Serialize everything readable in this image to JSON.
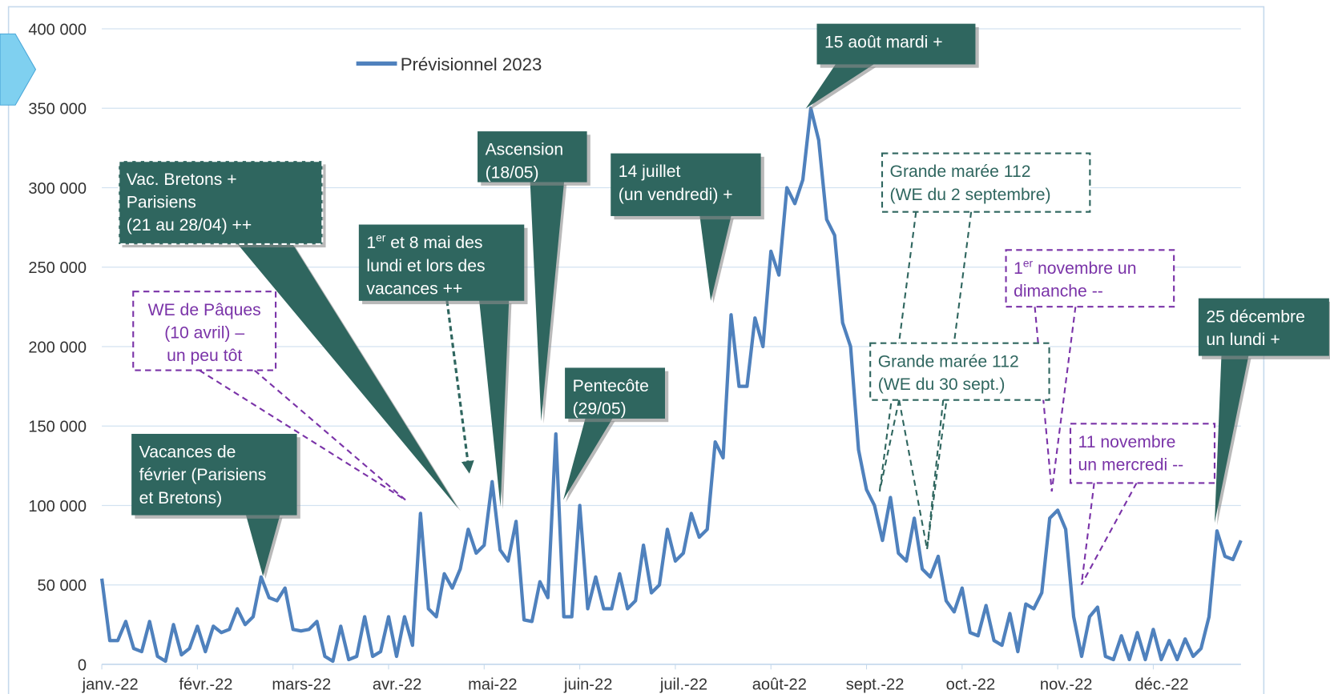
{
  "chart_data": {
    "type": "line",
    "legend": "top-left",
    "grid": true,
    "ylim": [
      0,
      400000
    ],
    "yticks": [
      0,
      {
        "value": 50000,
        "label": "50 000"
      },
      {
        "value": 100000,
        "label": "100 000"
      },
      {
        "value": 150000,
        "label": "150 000"
      },
      {
        "value": 200000,
        "label": "200 000"
      },
      {
        "value": 250000,
        "label": "250 000"
      },
      {
        "value": 300000,
        "label": "300 000"
      },
      {
        "value": 350000,
        "label": "350 000"
      },
      {
        "value": 400000,
        "label": "400 000"
      }
    ],
    "categories": [
      "janv.-22",
      null,
      null,
      null,
      null,
      null,
      null,
      null,
      null,
      null,
      null,
      null,
      "févr.-22",
      null,
      null,
      null,
      null,
      null,
      null,
      null,
      null,
      null,
      null,
      null,
      "mars-22",
      null,
      null,
      null,
      null,
      null,
      null,
      null,
      null,
      null,
      null,
      null,
      "avr.-22",
      null,
      null,
      null,
      null,
      null,
      null,
      null,
      null,
      null,
      null,
      null,
      "mai-22",
      null,
      null,
      null,
      null,
      null,
      null,
      null,
      null,
      null,
      null,
      null,
      "juin-22",
      null,
      null,
      null,
      null,
      null,
      null,
      null,
      null,
      null,
      null,
      null,
      "juil.-22",
      null,
      null,
      null,
      null,
      null,
      null,
      null,
      null,
      null,
      null,
      null,
      "août-22",
      null,
      null,
      null,
      null,
      null,
      null,
      null,
      null,
      null,
      null,
      null,
      "sept.-22",
      null,
      null,
      null,
      null,
      null,
      null,
      null,
      null,
      null,
      null,
      null,
      "oct.-22",
      null,
      null,
      null,
      null,
      null,
      null,
      null,
      null,
      null,
      null,
      null,
      "nov.-22",
      null,
      null,
      null,
      null,
      null,
      null,
      null,
      null,
      null,
      null,
      null,
      "déc.-22",
      null,
      null,
      null,
      null,
      null,
      null,
      null,
      null,
      null,
      null,
      null
    ],
    "series": [
      {
        "name": "Prévisionnel 2023",
        "color": "#4f81bd",
        "values": [
          54000,
          15000,
          15000,
          27000,
          10000,
          8000,
          27000,
          5000,
          2000,
          25000,
          6000,
          10000,
          24000,
          8000,
          24000,
          20000,
          22000,
          35000,
          25000,
          30000,
          55000,
          42000,
          40000,
          48000,
          22000,
          21000,
          22000,
          27000,
          5000,
          2000,
          24000,
          3000,
          5000,
          30000,
          5000,
          8000,
          30000,
          5000,
          30000,
          12000,
          95000,
          35000,
          30000,
          57000,
          48000,
          60000,
          85000,
          70000,
          75000,
          115000,
          72000,
          65000,
          90000,
          28000,
          27000,
          52000,
          42000,
          145000,
          30000,
          30000,
          100000,
          35000,
          55000,
          35000,
          35000,
          57000,
          35000,
          40000,
          75000,
          45000,
          50000,
          85000,
          65000,
          70000,
          95000,
          80000,
          85000,
          140000,
          130000,
          220000,
          175000,
          175000,
          218000,
          200000,
          260000,
          245000,
          300000,
          290000,
          305000,
          350000,
          330000,
          280000,
          270000,
          215000,
          200000,
          135000,
          110000,
          100000,
          78000,
          105000,
          70000,
          65000,
          92000,
          60000,
          55000,
          68000,
          40000,
          33000,
          48000,
          20000,
          18000,
          37000,
          15000,
          12000,
          32000,
          8000,
          38000,
          35000,
          45000,
          92000,
          97000,
          85000,
          30000,
          5000,
          30000,
          36000,
          5000,
          3000,
          18000,
          3000,
          20000,
          3000,
          22000,
          3000,
          15000,
          3000,
          16000,
          5000,
          10000,
          30000,
          84000,
          68000,
          66000,
          78000
        ]
      }
    ],
    "annotations": [
      {
        "style": "dark-dashed",
        "lines": [
          "Vac. Bretons +",
          "Parisiens",
          " (21 au 28/04) ++"
        ]
      },
      {
        "style": "purple-dashed",
        "lines": [
          "WE de Pâques",
          "(10 avril) –",
          "un peu tôt"
        ]
      },
      {
        "style": "dark",
        "lines": [
          "Vacances de",
          "février (Parisiens",
          "et Bretons)"
        ]
      },
      {
        "style": "dark",
        "lines": [
          [
            "1",
            "er",
            " et 8 mai des"
          ],
          "lundi et lors des",
          "vacances ++"
        ]
      },
      {
        "style": "dark",
        "lines": [
          "Ascension",
          "(18/05)"
        ]
      },
      {
        "style": "dark",
        "lines": [
          "Pentecôte",
          "(29/05)"
        ]
      },
      {
        "style": "dark",
        "lines": [
          "14 juillet",
          "(un vendredi) +"
        ]
      },
      {
        "style": "dark",
        "lines": [
          "15 août mardi +"
        ]
      },
      {
        "style": "green-dashed",
        "lines": [
          "Grande marée 112",
          "(WE du 2 septembre)"
        ]
      },
      {
        "style": "green-dashed",
        "lines": [
          "Grande marée 112",
          "(WE du 30 sept.)"
        ]
      },
      {
        "style": "purple-dashed",
        "lines": [
          [
            "1",
            "er",
            " novembre un"
          ],
          "dimanche --"
        ]
      },
      {
        "style": "purple-dashed",
        "lines": [
          "11 novembre",
          "un mercredi --"
        ]
      },
      {
        "style": "dark",
        "lines": [
          "25 décembre",
          "un lundi +"
        ]
      }
    ]
  }
}
